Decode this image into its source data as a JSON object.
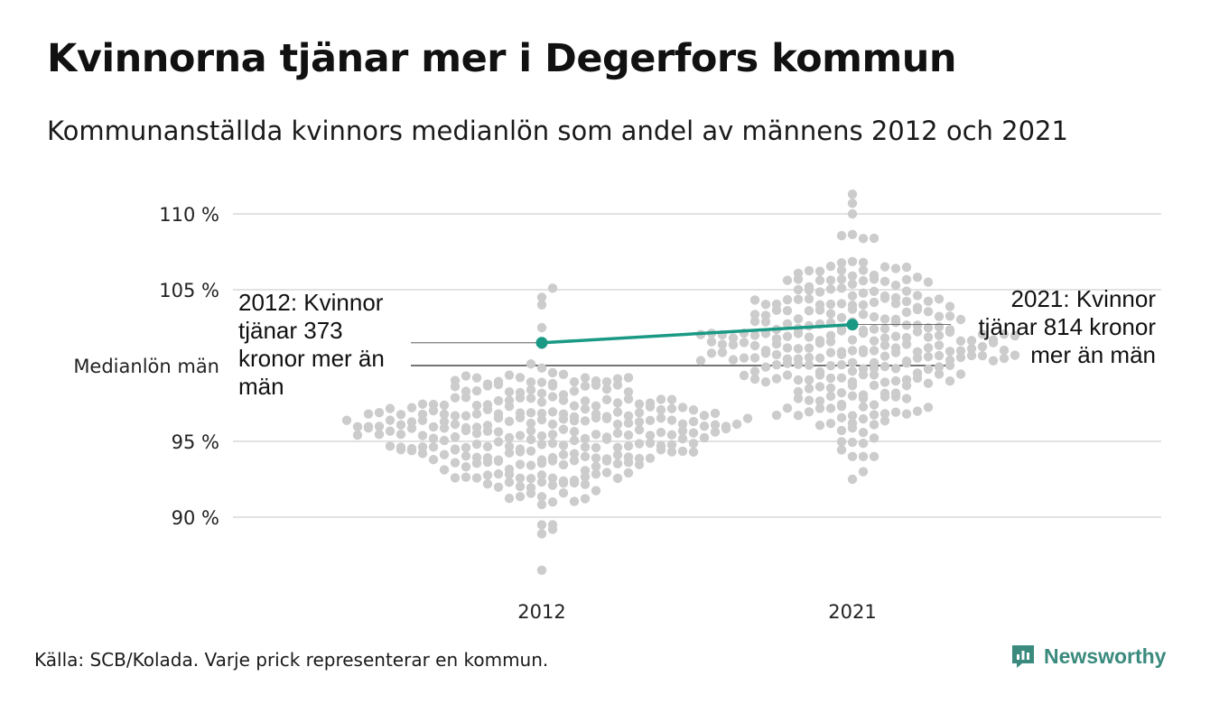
{
  "header": {
    "title": "Kvinnorna tjänar mer i Degerfors kommun",
    "subtitle": "Kommunanställda kvinnors medianlön som andel av männens 2012 och 2021"
  },
  "footer": {
    "source": "Källa: SCB/Kolada. Varje prick representerar en kommun.",
    "brand": "Newsworthy",
    "brand_icon": "newsworthy-logo-icon"
  },
  "colors": {
    "dots": "#cccccc",
    "highlight": "#1a9a85",
    "grid": "#e2e2e2",
    "reference": "#222222",
    "brand": "#3a8a7e"
  },
  "chart_data": {
    "type": "scatter",
    "subtype": "beeswarm",
    "categories": [
      "2012",
      "2021"
    ],
    "y_ticks": [
      90,
      95,
      100,
      105,
      110
    ],
    "y_tick_labels": [
      "90 %",
      "95 %",
      "Medianlön män",
      "105 %",
      "110 %"
    ],
    "ylim": [
      86.5,
      111.5
    ],
    "grid": true,
    "reference_line": {
      "value": 100,
      "label": "Medianlön män"
    },
    "swarms": [
      {
        "category": "2012",
        "n_points": 290,
        "median": 95.6,
        "spread_low": 91.0,
        "spread_high": 101.0,
        "outliers": [
          86.5,
          88.9,
          89.2,
          104.0,
          104.5,
          105.1
        ]
      },
      {
        "category": "2021",
        "n_points": 290,
        "median": 101.4,
        "spread_low": 95.5,
        "spread_high": 107.5,
        "outliers": [
          92.5,
          93.0,
          110.0,
          110.7,
          111.3
        ]
      }
    ],
    "highlight": {
      "name": "Degerfors",
      "values": [
        101.5,
        102.7
      ],
      "annotations": [
        "2012: Kvinnor tjänar 373 kronor mer än män",
        "2021: Kvinnor tjänar 814 kronor mer än män"
      ]
    }
  }
}
